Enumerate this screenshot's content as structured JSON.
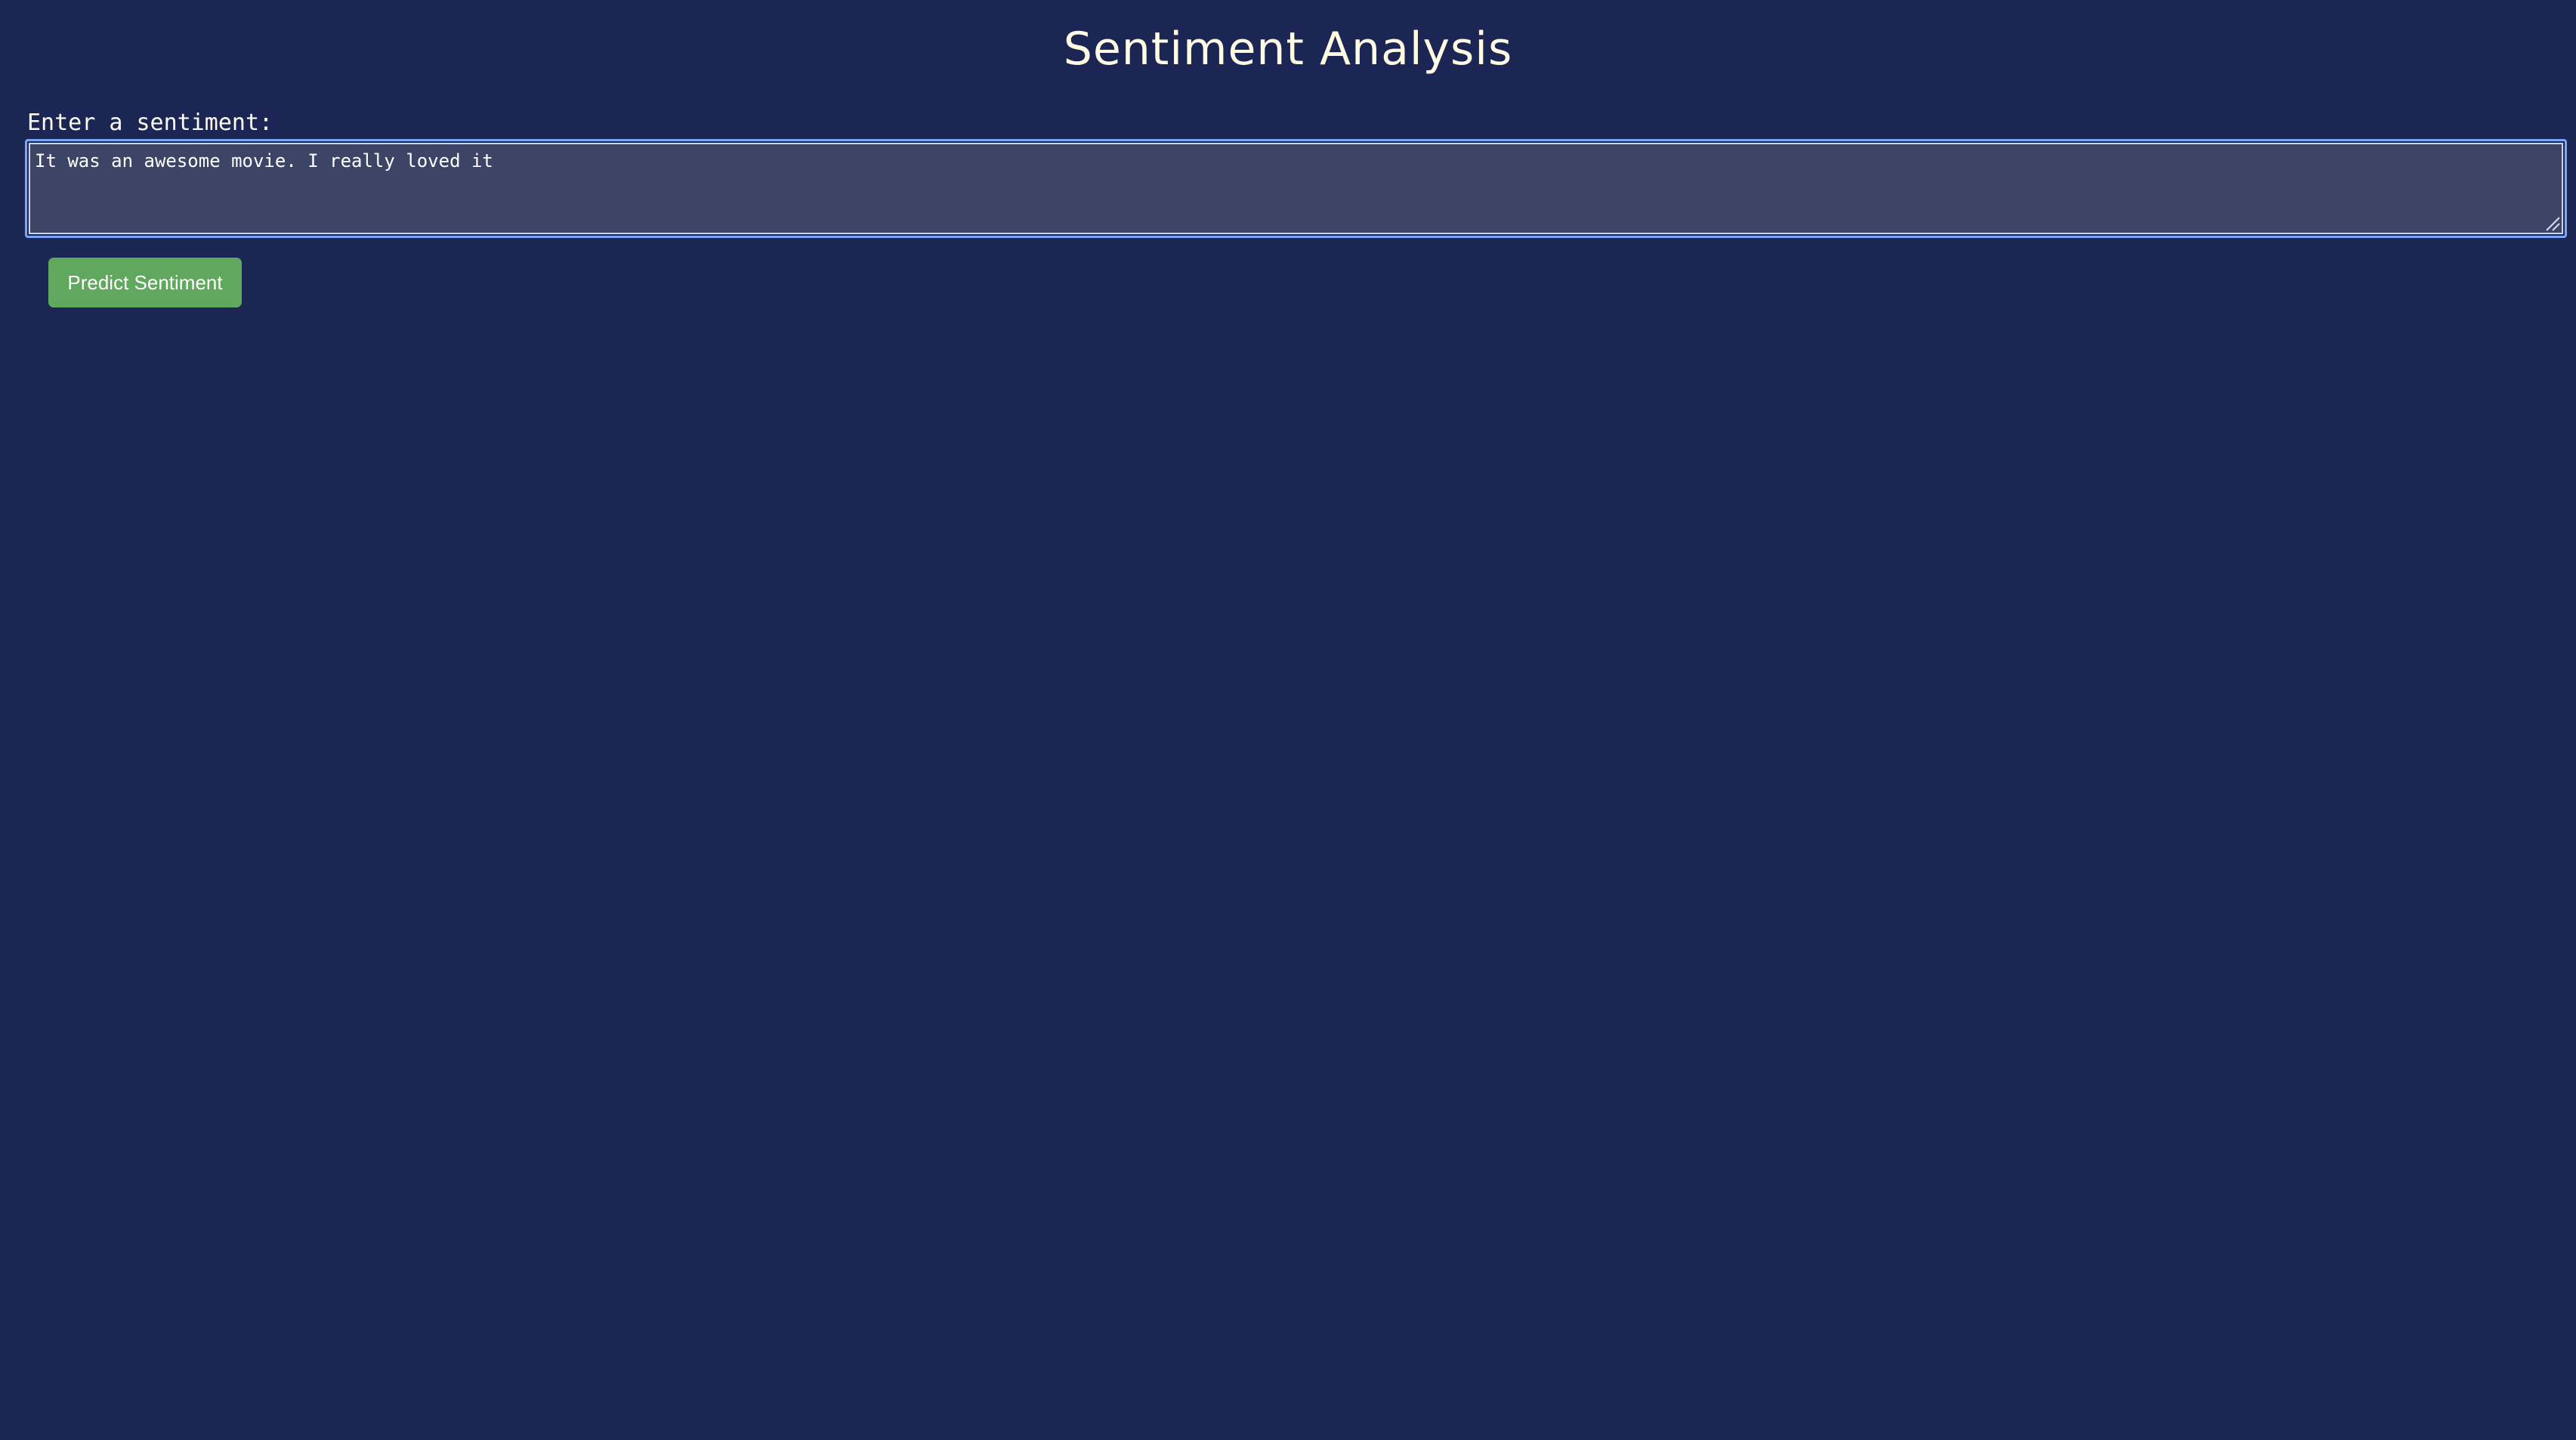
{
  "page": {
    "title": "Sentiment Analysis"
  },
  "form": {
    "label": "Enter a sentiment:",
    "textarea_value": "It was an awesome movie. I really loved it ",
    "button_label": "Predict Sentiment"
  },
  "colors": {
    "background": "#1b2655",
    "title_text": "#fffbe3",
    "textarea_background": "#3c4565",
    "focus_ring": "#7aa6f7",
    "button_background": "#5fa85d",
    "button_text": "#ffffff"
  },
  "icons": {
    "resize_handle": "resize-grip-icon"
  }
}
